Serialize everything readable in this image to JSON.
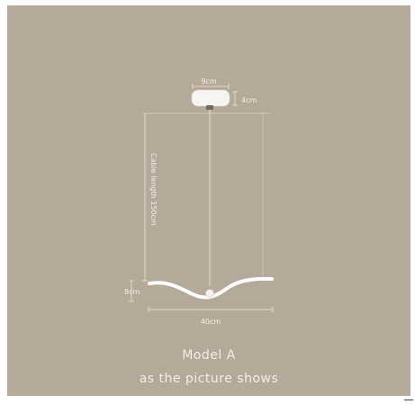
{
  "dimensions": {
    "canopy_width": "9cm",
    "canopy_height": "4cm",
    "cable": "Cable length 150cm",
    "fixture_height": "8cm",
    "fixture_width": "40cm"
  },
  "caption": {
    "model": "Model A",
    "note": "as the picture shows"
  },
  "colors": {
    "background": "#b5aa99",
    "lamp": "#ffffff",
    "text": "#f3eee6"
  }
}
